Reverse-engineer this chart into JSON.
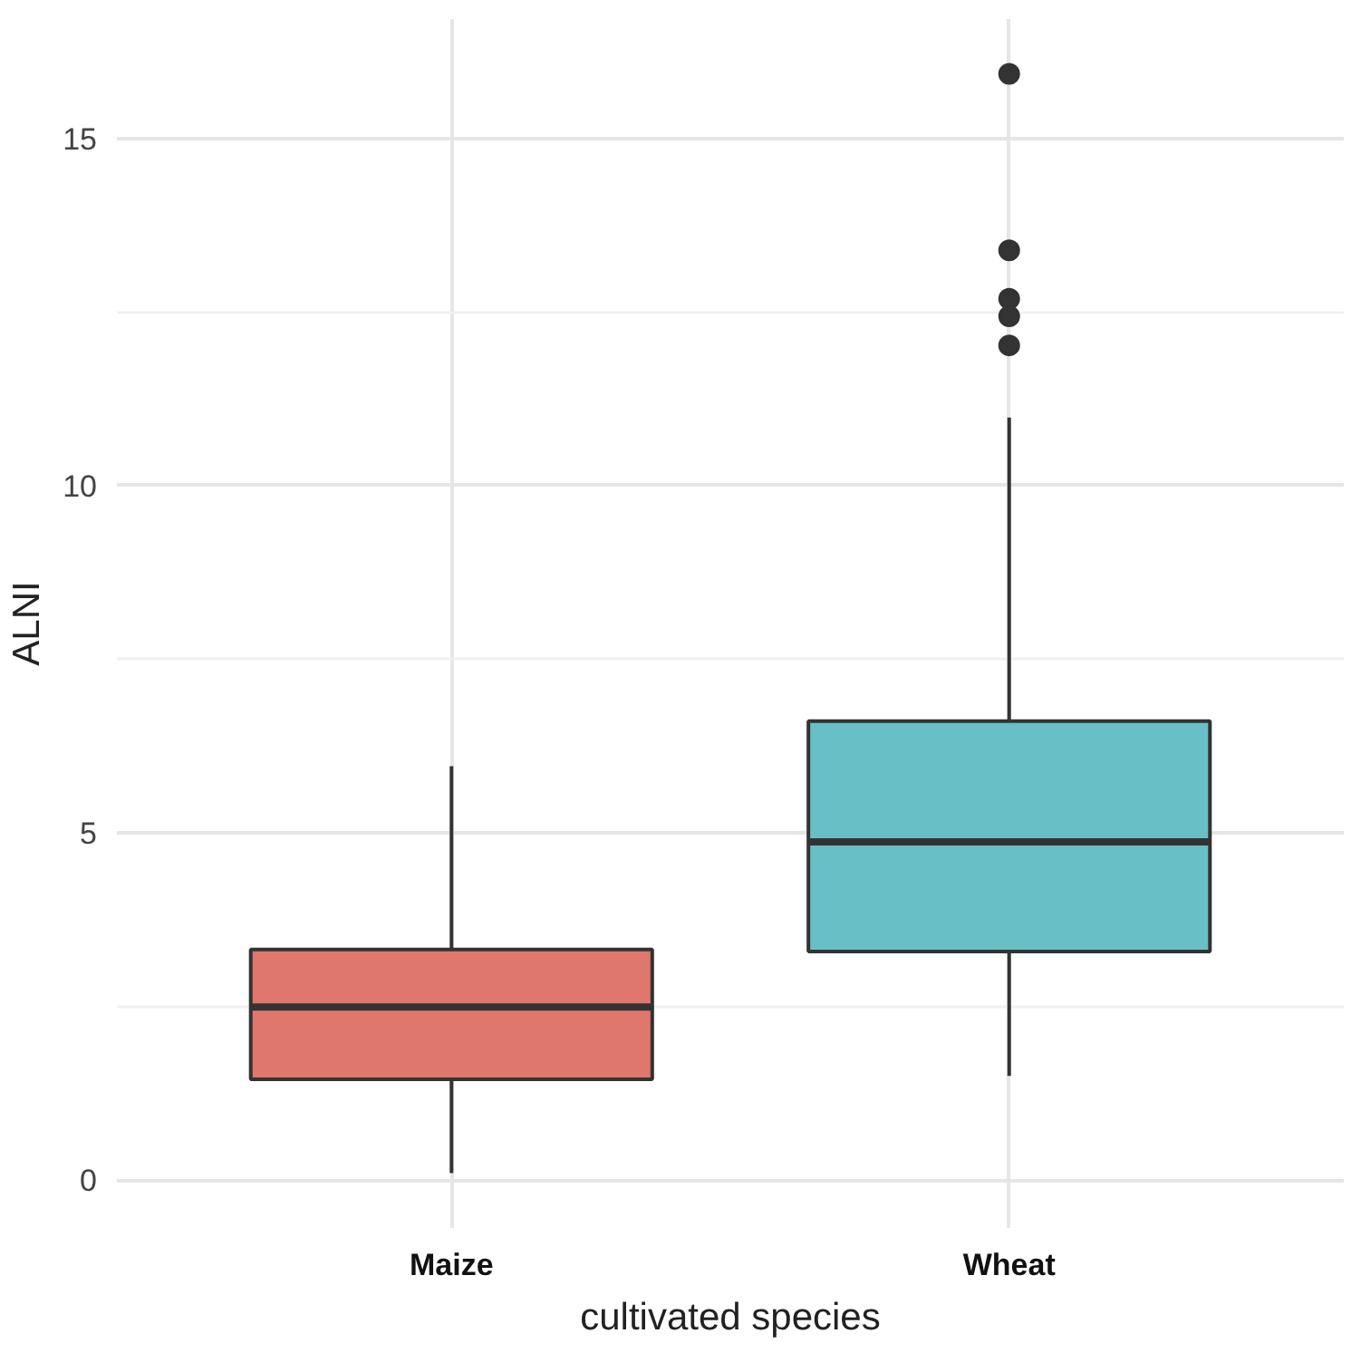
{
  "chart_data": {
    "type": "box",
    "xlabel": "cultivated species",
    "ylabel": "ALNI",
    "categories": [
      "Maize",
      "Wheat"
    ],
    "colors": [
      "#df776c",
      "#68bfc5"
    ],
    "boxes": [
      {
        "low": 0.1,
        "q1": 1.45,
        "median": 2.49,
        "q3": 3.32,
        "high": 5.96
      },
      {
        "low": 1.5,
        "q1": 3.29,
        "median": 4.87,
        "q3": 6.61,
        "high": 10.98,
        "outliers": [
          15.93,
          13.39,
          12.69,
          12.44,
          12.02
        ]
      }
    ],
    "ylim": [
      -0.69,
      16.72
    ],
    "yticks": [
      0,
      5,
      10,
      15
    ],
    "grid": true
  }
}
